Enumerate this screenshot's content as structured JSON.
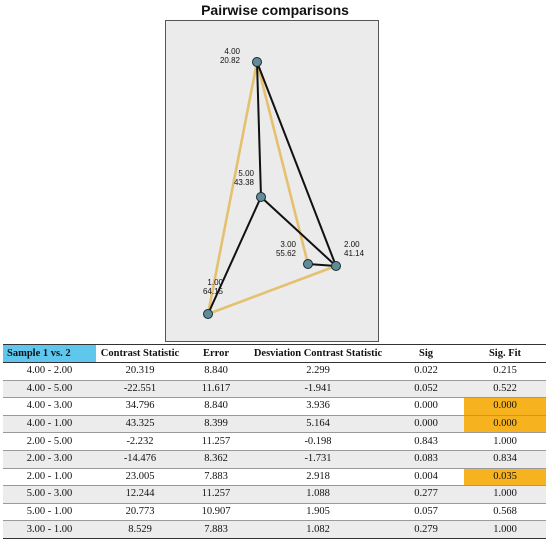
{
  "title": "Pairwise comparisons",
  "colors": {
    "edge_black": "#111111",
    "edge_yellow": "#e4c16e",
    "node_fill": "#5e8c98",
    "highlight": "#f7b31f",
    "header_blue": "#5fc6ee"
  },
  "nodes": [
    {
      "id": "4.00",
      "label": "4.00",
      "value": "20.82"
    },
    {
      "id": "5.00",
      "label": "5.00",
      "value": "43.38"
    },
    {
      "id": "3.00",
      "label": "3.00",
      "value": "55.62"
    },
    {
      "id": "2.00",
      "label": "2.00",
      "value": "41.14"
    },
    {
      "id": "1.00",
      "label": "1.00",
      "value": "64.15"
    }
  ],
  "edges": [
    {
      "from": "4.00",
      "to": "1.00",
      "color": "yellow"
    },
    {
      "from": "4.00",
      "to": "3.00",
      "color": "yellow"
    },
    {
      "from": "1.00",
      "to": "2.00",
      "color": "yellow"
    },
    {
      "from": "4.00",
      "to": "5.00",
      "color": "black"
    },
    {
      "from": "4.00",
      "to": "2.00",
      "color": "black"
    },
    {
      "from": "5.00",
      "to": "2.00",
      "color": "black"
    },
    {
      "from": "5.00",
      "to": "1.00",
      "color": "black"
    },
    {
      "from": "3.00",
      "to": "2.00",
      "color": "black"
    }
  ],
  "table": {
    "headers": [
      "Sample 1 vs. 2",
      "Contrast Statistic",
      "Error",
      "Desviation Contrast Statistic",
      "Sig",
      "Sig. Fit"
    ],
    "rows": [
      {
        "cells": [
          "4.00 - 2.00",
          "20.319",
          "8.840",
          "2.299",
          "0.022",
          "0.215"
        ],
        "highlight": false
      },
      {
        "cells": [
          "4.00 - 5.00",
          "-22.551",
          "11.617",
          "-1.941",
          "0.052",
          "0.522"
        ],
        "highlight": false
      },
      {
        "cells": [
          "4.00 - 3.00",
          "34.796",
          "8.840",
          "3.936",
          "0.000",
          "0.000"
        ],
        "highlight": true
      },
      {
        "cells": [
          "4.00 - 1.00",
          "43.325",
          "8.399",
          "5.164",
          "0.000",
          "0.000"
        ],
        "highlight": true
      },
      {
        "cells": [
          "2.00 - 5.00",
          "-2.232",
          "11.257",
          "-0.198",
          "0.843",
          "1.000"
        ],
        "highlight": false
      },
      {
        "cells": [
          "2.00 - 3.00",
          "-14.476",
          "8.362",
          "-1.731",
          "0.083",
          "0.834"
        ],
        "highlight": false
      },
      {
        "cells": [
          "2.00 - 1.00",
          "23.005",
          "7.883",
          "2.918",
          "0.004",
          "0.035"
        ],
        "highlight": true
      },
      {
        "cells": [
          "5.00 - 3.00",
          "12.244",
          "11.257",
          "1.088",
          "0.277",
          "1.000"
        ],
        "highlight": false
      },
      {
        "cells": [
          "5.00 - 1.00",
          "20.773",
          "10.907",
          "1.905",
          "0.057",
          "0.568"
        ],
        "highlight": false
      },
      {
        "cells": [
          "3.00 - 1.00",
          "8.529",
          "7.883",
          "1.082",
          "0.279",
          "1.000"
        ],
        "highlight": false
      }
    ]
  }
}
